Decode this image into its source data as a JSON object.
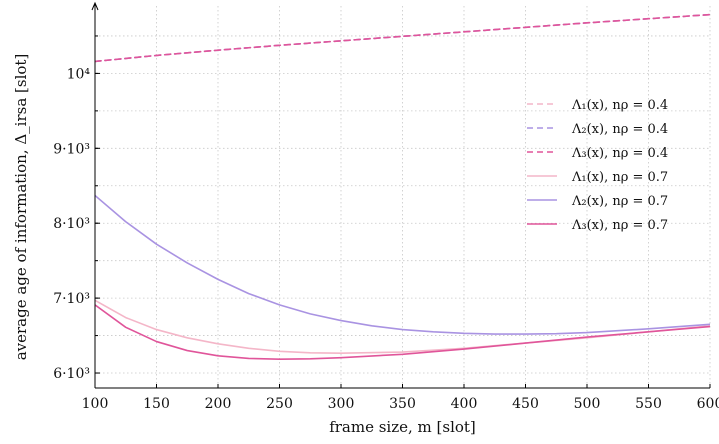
{
  "chart_data": {
    "type": "line",
    "xlabel": "frame size, m [slot]",
    "ylabel": "average age of information, Δ_irsa [slot]",
    "xlim": [
      100,
      600
    ],
    "ylim": [
      5800,
      10900
    ],
    "x_ticks": [
      100,
      150,
      200,
      250,
      300,
      350,
      400,
      450,
      500,
      550,
      600
    ],
    "y_ticks": [
      {
        "value": 6000,
        "label": "6·10³"
      },
      {
        "value": 7000,
        "label": "7·10³"
      },
      {
        "value": 8000,
        "label": "8·10³"
      },
      {
        "value": 9000,
        "label": "9·10³"
      },
      {
        "value": 10000,
        "label": "10⁴"
      }
    ],
    "grid": true,
    "legend_position": "right",
    "series": [
      {
        "name": "Λ₁(x), nρ = 0.4",
        "color": "#f4b6c8",
        "dash": "dashed",
        "x": [
          100,
          150,
          200,
          250,
          300,
          350,
          400,
          450,
          500,
          550,
          600
        ],
        "y": [
          10160,
          10240,
          10310,
          10375,
          10435,
          10495,
          10555,
          10615,
          10675,
          10730,
          10785
        ]
      },
      {
        "name": "Λ₂(x), nρ = 0.4",
        "color": "#a993e2",
        "dash": "dashed",
        "x": [
          100,
          150,
          200,
          250,
          300,
          350,
          400,
          450,
          500,
          550,
          600
        ],
        "y": [
          10160,
          10240,
          10310,
          10375,
          10435,
          10495,
          10555,
          10615,
          10675,
          10730,
          10785
        ]
      },
      {
        "name": "Λ₃(x), nρ = 0.4",
        "color": "#e0559a",
        "dash": "dashed",
        "x": [
          100,
          150,
          200,
          250,
          300,
          350,
          400,
          450,
          500,
          550,
          600
        ],
        "y": [
          10160,
          10240,
          10310,
          10375,
          10435,
          10495,
          10555,
          10615,
          10675,
          10730,
          10785
        ]
      },
      {
        "name": "Λ₁(x), nρ = 0.7",
        "color": "#f4b6c8",
        "dash": "solid",
        "x": [
          100,
          125,
          150,
          175,
          200,
          225,
          250,
          275,
          300,
          350,
          400,
          450,
          500,
          550,
          600
        ],
        "y": [
          6970,
          6740,
          6580,
          6470,
          6390,
          6330,
          6290,
          6270,
          6265,
          6280,
          6330,
          6400,
          6470,
          6550,
          6630
        ]
      },
      {
        "name": "Λ₂(x), nρ = 0.7",
        "color": "#a993e2",
        "dash": "solid",
        "x": [
          100,
          125,
          150,
          175,
          200,
          225,
          250,
          275,
          300,
          325,
          350,
          375,
          400,
          425,
          450,
          475,
          500,
          550,
          600
        ],
        "y": [
          8370,
          8020,
          7720,
          7470,
          7250,
          7060,
          6910,
          6790,
          6700,
          6630,
          6580,
          6550,
          6530,
          6520,
          6520,
          6525,
          6540,
          6590,
          6650
        ]
      },
      {
        "name": "Λ₃(x), nρ = 0.7",
        "color": "#e0559a",
        "dash": "solid",
        "x": [
          100,
          125,
          150,
          175,
          200,
          225,
          250,
          275,
          300,
          350,
          400,
          450,
          500,
          550,
          600
        ],
        "y": [
          6910,
          6610,
          6420,
          6300,
          6230,
          6195,
          6185,
          6190,
          6205,
          6250,
          6320,
          6400,
          6480,
          6550,
          6620
        ]
      }
    ]
  }
}
